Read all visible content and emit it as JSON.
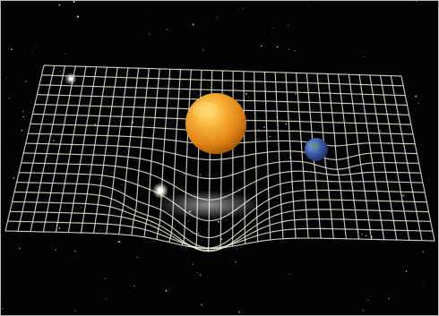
{
  "scene": {
    "background": "#030305",
    "grid_color": "#e9ecd8",
    "sun_color": "#f3a11f",
    "planet_color": "#3d5ea8",
    "moon_color": "#f4f4ec",
    "star_color": "#ffffff"
  }
}
